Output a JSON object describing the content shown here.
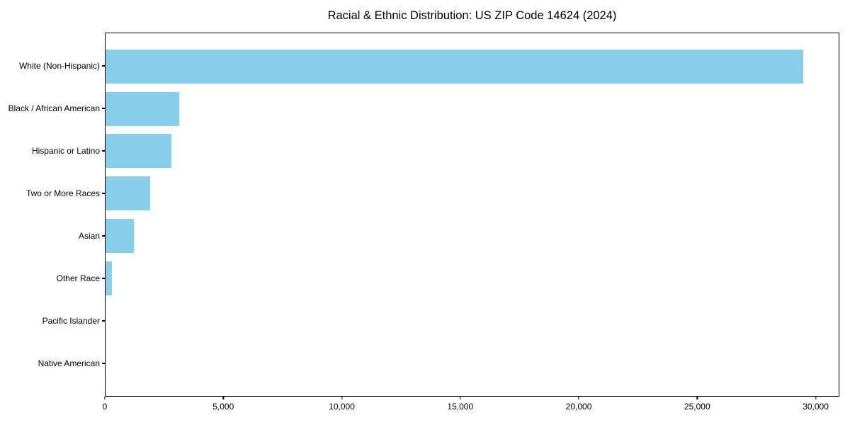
{
  "chart_data": {
    "type": "bar",
    "orientation": "horizontal",
    "title": "Racial & Ethnic Distribution: US ZIP Code 14624 (2024)",
    "xlabel": "",
    "ylabel": "",
    "categories": [
      "White (Non-Hispanic)",
      "Black / African American",
      "Hispanic or Latino",
      "Two or More Races",
      "Asian",
      "Other Race",
      "Pacific Islander",
      "Native American"
    ],
    "values": [
      29500,
      3100,
      2780,
      1880,
      1190,
      270,
      0,
      0
    ],
    "xlim": [
      0,
      31000
    ],
    "x_ticks": [
      0,
      5000,
      10000,
      15000,
      20000,
      25000,
      30000
    ],
    "x_tick_labels": [
      "0",
      "5,000",
      "10,000",
      "15,000",
      "20,000",
      "25,000",
      "30,000"
    ],
    "bar_color": "#87CEEB",
    "background_color": "#ffffff",
    "spine_color": "#000000",
    "grid": false,
    "legend": null
  }
}
